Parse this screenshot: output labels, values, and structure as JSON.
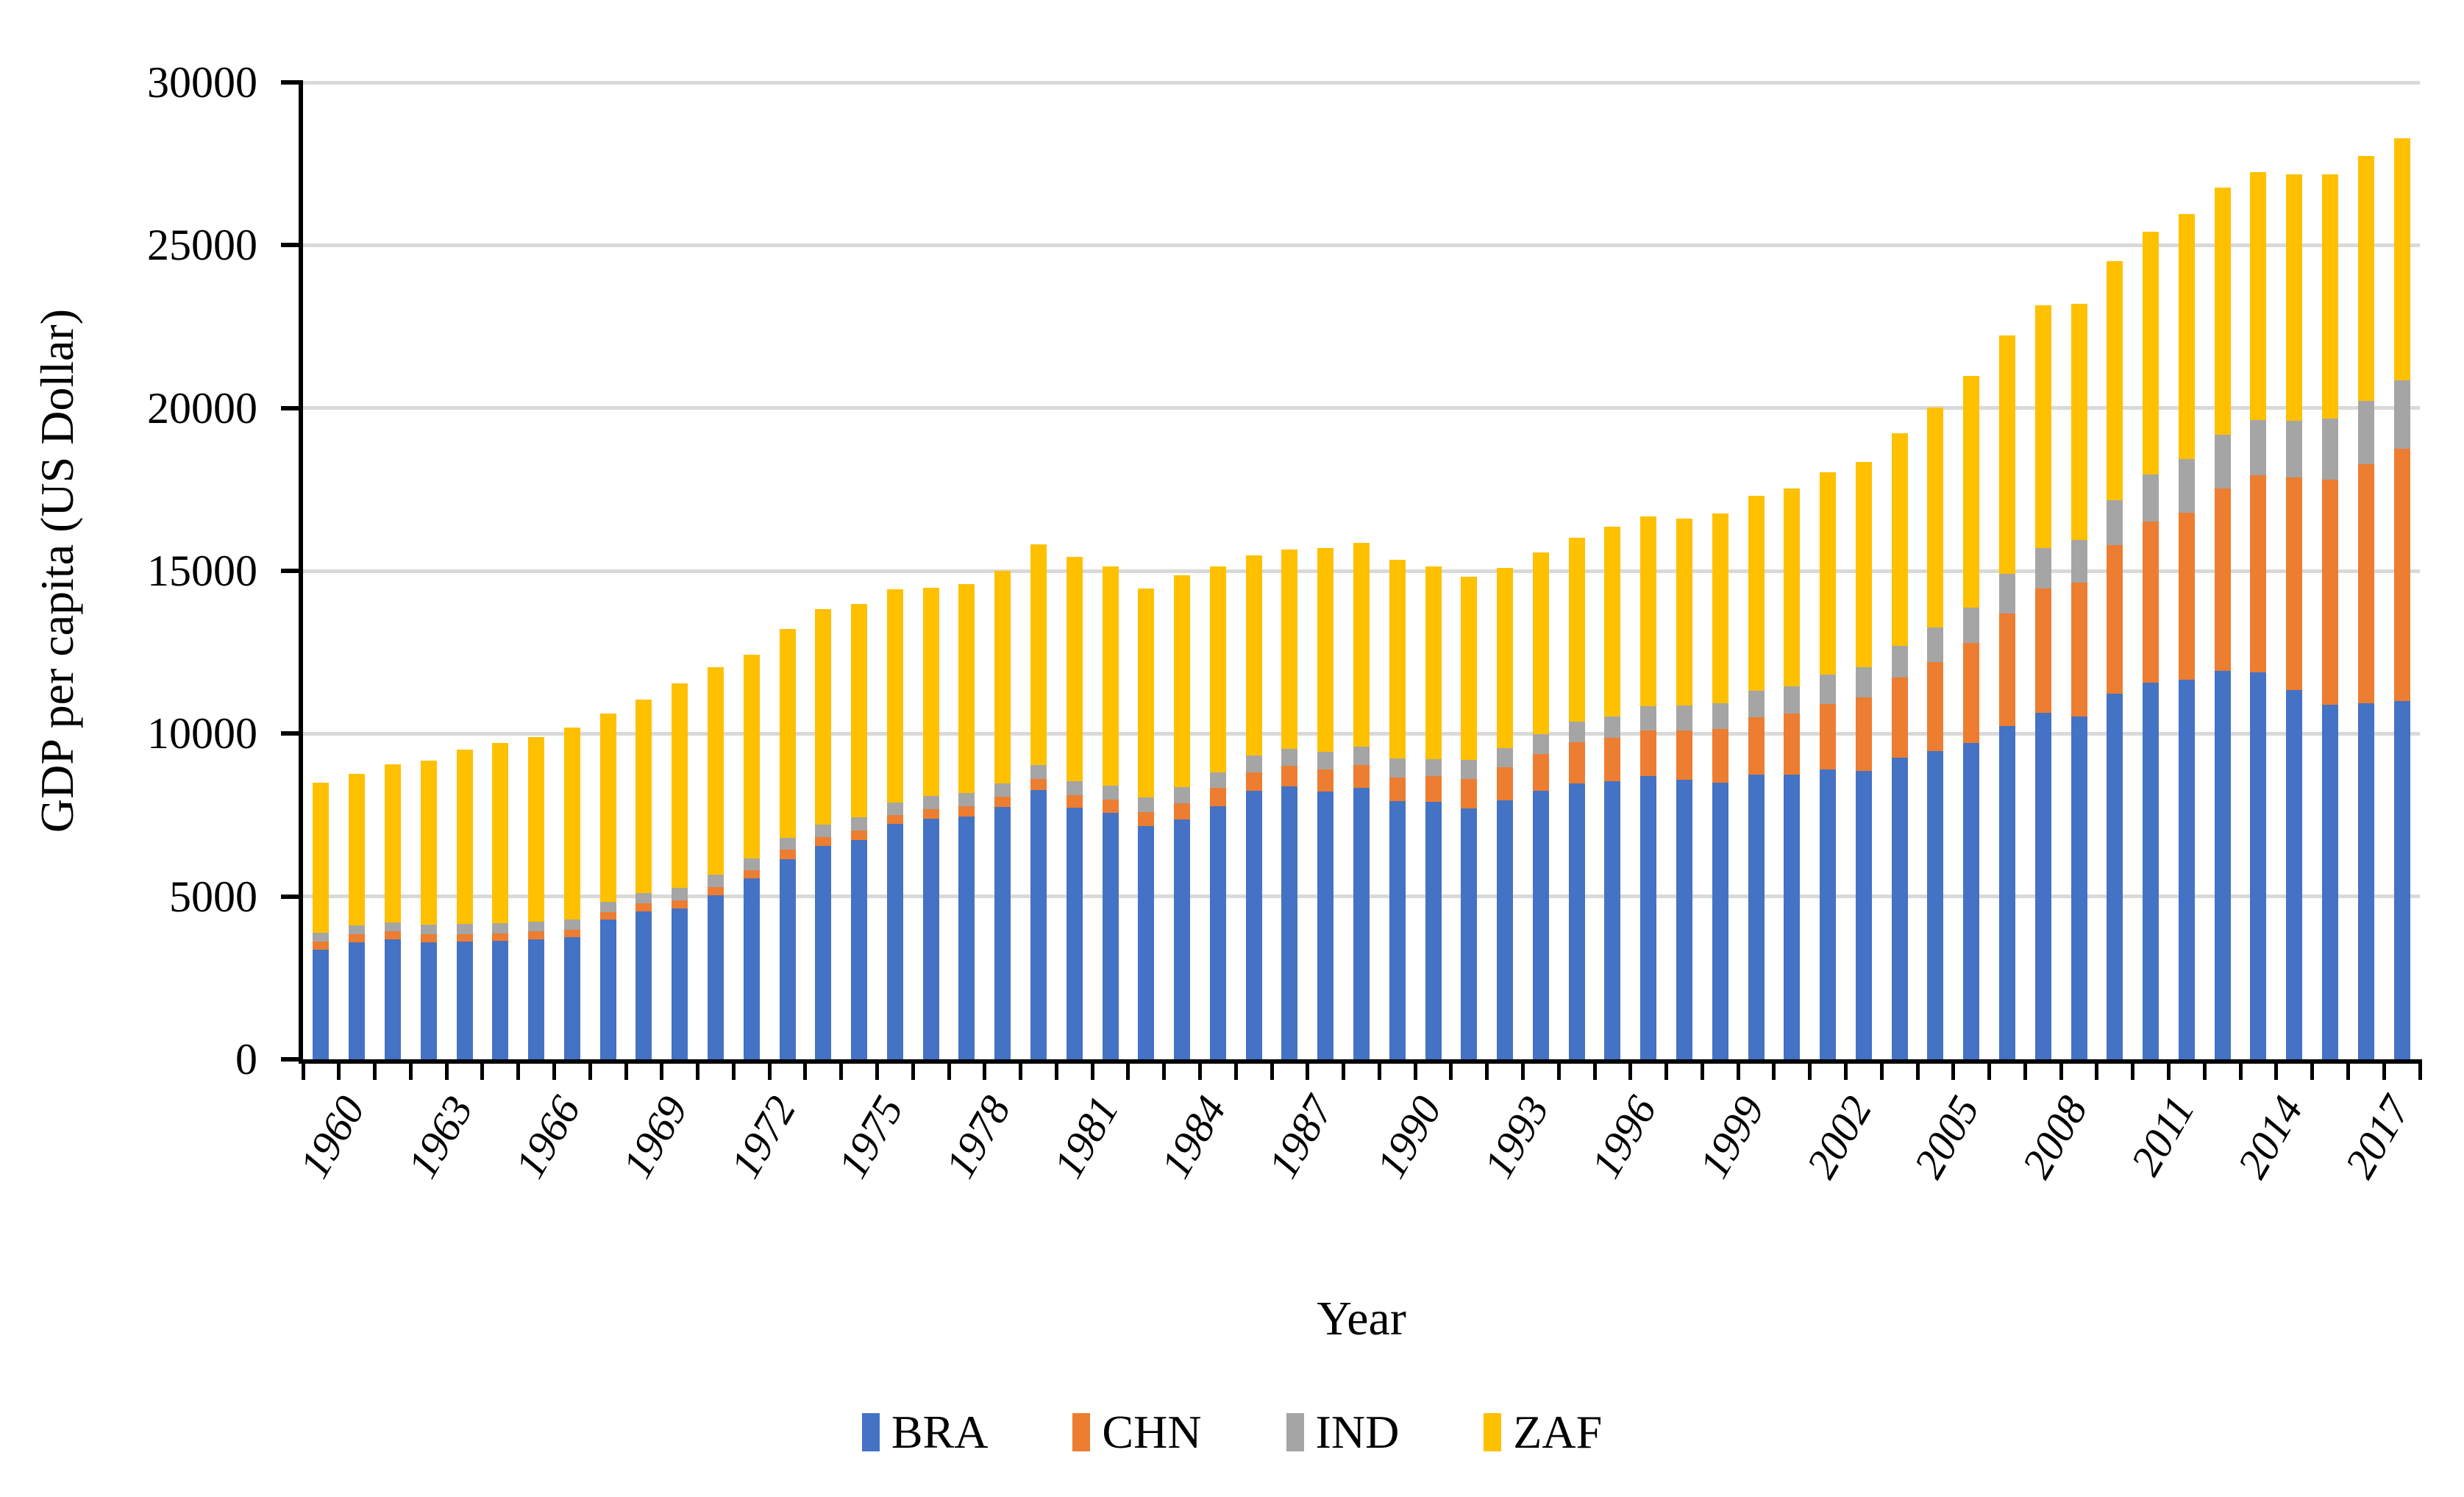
{
  "chart_data": {
    "type": "bar",
    "stacked": true,
    "title": "",
    "xlabel": "Year",
    "ylabel": "GDP per capita (US Dollar)",
    "ylim": [
      0,
      30000
    ],
    "y_ticks": [
      0,
      5000,
      10000,
      15000,
      20000,
      25000,
      30000
    ],
    "x_tick_label_step": 3,
    "grid": "horizontal",
    "gridline_color": "#D9D9D9",
    "axis_color": "#000000",
    "legend_position": "bottom",
    "categories": [
      1960,
      1961,
      1962,
      1963,
      1964,
      1965,
      1966,
      1967,
      1968,
      1969,
      1970,
      1971,
      1972,
      1973,
      1974,
      1975,
      1976,
      1977,
      1978,
      1979,
      1980,
      1981,
      1982,
      1983,
      1984,
      1985,
      1986,
      1987,
      1988,
      1989,
      1990,
      1991,
      1992,
      1993,
      1994,
      1995,
      1996,
      1997,
      1998,
      1999,
      2000,
      2001,
      2002,
      2003,
      2004,
      2005,
      2006,
      2007,
      2008,
      2009,
      2010,
      2011,
      2012,
      2013,
      2014,
      2015,
      2016,
      2017,
      2018
    ],
    "x_labeled_categories": [
      1960,
      1963,
      1966,
      1969,
      1972,
      1975,
      1978,
      1981,
      1984,
      1987,
      1990,
      1993,
      1996,
      1999,
      2002,
      2005,
      2008,
      2011,
      2014,
      2017
    ],
    "series": [
      {
        "name": "BRA",
        "color": "#4472C4",
        "values": [
          3360,
          3585,
          3680,
          3585,
          3605,
          3630,
          3680,
          3740,
          4285,
          4550,
          4625,
          5035,
          5550,
          6150,
          6545,
          6730,
          7235,
          7385,
          7460,
          7745,
          8275,
          7735,
          7575,
          7160,
          7370,
          7760,
          8235,
          8370,
          8215,
          8325,
          7935,
          7900,
          7710,
          7950,
          8235,
          8465,
          8535,
          8690,
          8575,
          8485,
          8740,
          8740,
          8890,
          8860,
          9270,
          9465,
          9720,
          10230,
          10645,
          10520,
          11225,
          11565,
          11665,
          11925,
          11875,
          11345,
          10895,
          10925,
          11000
        ]
      },
      {
        "name": "CHN",
        "color": "#ED7D31",
        "values": [
          250,
          250,
          245,
          250,
          245,
          240,
          245,
          240,
          240,
          250,
          250,
          240,
          255,
          280,
          285,
          300,
          270,
          285,
          300,
          315,
          340,
          375,
          400,
          420,
          490,
          570,
          580,
          640,
          680,
          715,
          715,
          790,
          905,
          1015,
          1130,
          1280,
          1335,
          1405,
          1520,
          1650,
          1755,
          1885,
          2030,
          2260,
          2465,
          2725,
          3070,
          3465,
          3815,
          4115,
          4555,
          4955,
          5115,
          5600,
          6055,
          6525,
          6900,
          7345,
          7740
        ]
      },
      {
        "name": "IND",
        "color": "#A5A5A5",
        "values": [
          265,
          280,
          285,
          300,
          300,
          300,
          310,
          305,
          300,
          315,
          390,
          400,
          360,
          375,
          370,
          400,
          390,
          415,
          420,
          415,
          430,
          430,
          435,
          470,
          490,
          485,
          510,
          520,
          550,
          550,
          590,
          535,
          580,
          590,
          625,
          615,
          650,
          740,
          775,
          790,
          830,
          825,
          890,
          920,
          955,
          1070,
          1090,
          1205,
          1230,
          1320,
          1380,
          1430,
          1650,
          1665,
          1700,
          1730,
          1885,
          1950,
          2110
        ]
      },
      {
        "name": "ZAF",
        "color": "#FFC000",
        "values": [
          4630,
          4650,
          4840,
          5045,
          5365,
          5555,
          5660,
          5910,
          5785,
          5930,
          6285,
          6355,
          6265,
          6415,
          6615,
          6545,
          6550,
          6385,
          6420,
          6520,
          6760,
          6900,
          6730,
          6400,
          6525,
          6325,
          6160,
          6120,
          6250,
          6270,
          6090,
          5900,
          5615,
          5535,
          5585,
          5655,
          5825,
          5835,
          5745,
          5845,
          5985,
          6085,
          6210,
          6310,
          6540,
          6745,
          7100,
          7320,
          7465,
          7240,
          7340,
          7475,
          7520,
          7580,
          7620,
          7585,
          7505,
          7530,
          7440
        ]
      }
    ]
  }
}
